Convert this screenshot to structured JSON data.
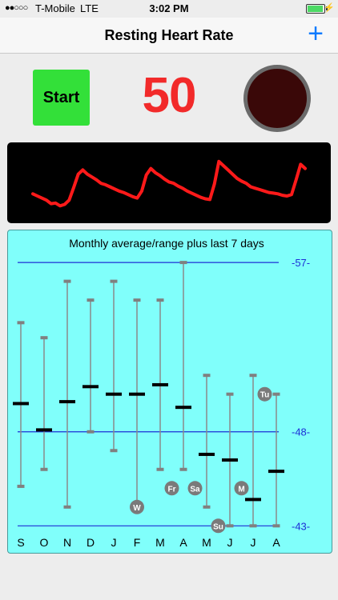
{
  "status_bar": {
    "signal": "●●○○○",
    "carrier": "T-Mobile",
    "network": "LTE",
    "time": "3:02 PM",
    "battery_level": 0.95
  },
  "nav": {
    "title": "Resting Heart Rate",
    "add_label": "+"
  },
  "monitor": {
    "start_label": "Start",
    "bpm_value": "50",
    "pulse_indicator_color": "#3a0808"
  },
  "colors": {
    "start_green": "#33e039",
    "bpm_red": "#f22a2a",
    "wave_red": "#ff1a1a",
    "chart_bg": "#80fffb",
    "line_blue": "#1d2fd6"
  },
  "waveform": {
    "samples": [
      0.36,
      0.33,
      0.3,
      0.27,
      0.22,
      0.23,
      0.19,
      0.21,
      0.27,
      0.45,
      0.64,
      0.7,
      0.64,
      0.6,
      0.56,
      0.51,
      0.49,
      0.46,
      0.43,
      0.4,
      0.38,
      0.35,
      0.32,
      0.3,
      0.4,
      0.63,
      0.72,
      0.66,
      0.62,
      0.57,
      0.53,
      0.51,
      0.47,
      0.44,
      0.4,
      0.37,
      0.34,
      0.31,
      0.29,
      0.28,
      0.5,
      0.82,
      0.76,
      0.7,
      0.64,
      0.58,
      0.54,
      0.51,
      0.46,
      0.44,
      0.42,
      0.4,
      0.38,
      0.37,
      0.36,
      0.34,
      0.33,
      0.35,
      0.56,
      0.78,
      0.72
    ]
  },
  "chart_data": {
    "type": "range",
    "title": "Monthly average/range plus last 7 days",
    "ylim": [
      42.8,
      57.6
    ],
    "reference_lines": [
      {
        "value": 57,
        "label": "-57-"
      },
      {
        "value": 48,
        "label": "-48-"
      },
      {
        "value": 43,
        "label": "-43-"
      }
    ],
    "categories": [
      "S",
      "O",
      "N",
      "D",
      "J",
      "F",
      "M",
      "A",
      "M",
      "J",
      "J",
      "A"
    ],
    "ranges": [
      {
        "min": 45.1,
        "max": 53.8,
        "avg": 49.5
      },
      {
        "min": 46.0,
        "max": 53.0,
        "avg": 48.1
      },
      {
        "min": 44.0,
        "max": 56.0,
        "avg": 49.6
      },
      {
        "min": 48.0,
        "max": 55.0,
        "avg": 50.4
      },
      {
        "min": 47.0,
        "max": 56.0,
        "avg": 50.0
      },
      {
        "min": 44.0,
        "max": 55.0,
        "avg": 50.0
      },
      {
        "min": 46.0,
        "max": 55.0,
        "avg": 50.5
      },
      {
        "min": 46.0,
        "max": 57.0,
        "avg": 49.3
      },
      {
        "min": 44.0,
        "max": 51.0,
        "avg": 46.8
      },
      {
        "min": 43.0,
        "max": 50.0,
        "avg": 46.5
      },
      {
        "min": 43.0,
        "max": 51.0,
        "avg": 44.4
      },
      {
        "min": 43.0,
        "max": 50.0,
        "avg": 45.9
      }
    ],
    "last7days": [
      {
        "day": "W",
        "value": 44.0,
        "index": 5
      },
      {
        "day": "Fr",
        "value": 45.0,
        "index": 6.5
      },
      {
        "day": "Sa",
        "value": 45.0,
        "index": 7.5
      },
      {
        "day": "Su",
        "value": 43.0,
        "index": 8.5
      },
      {
        "day": "M",
        "value": 45.0,
        "index": 9.5
      },
      {
        "day": "Tu",
        "value": 50.0,
        "index": 10.5
      }
    ]
  }
}
